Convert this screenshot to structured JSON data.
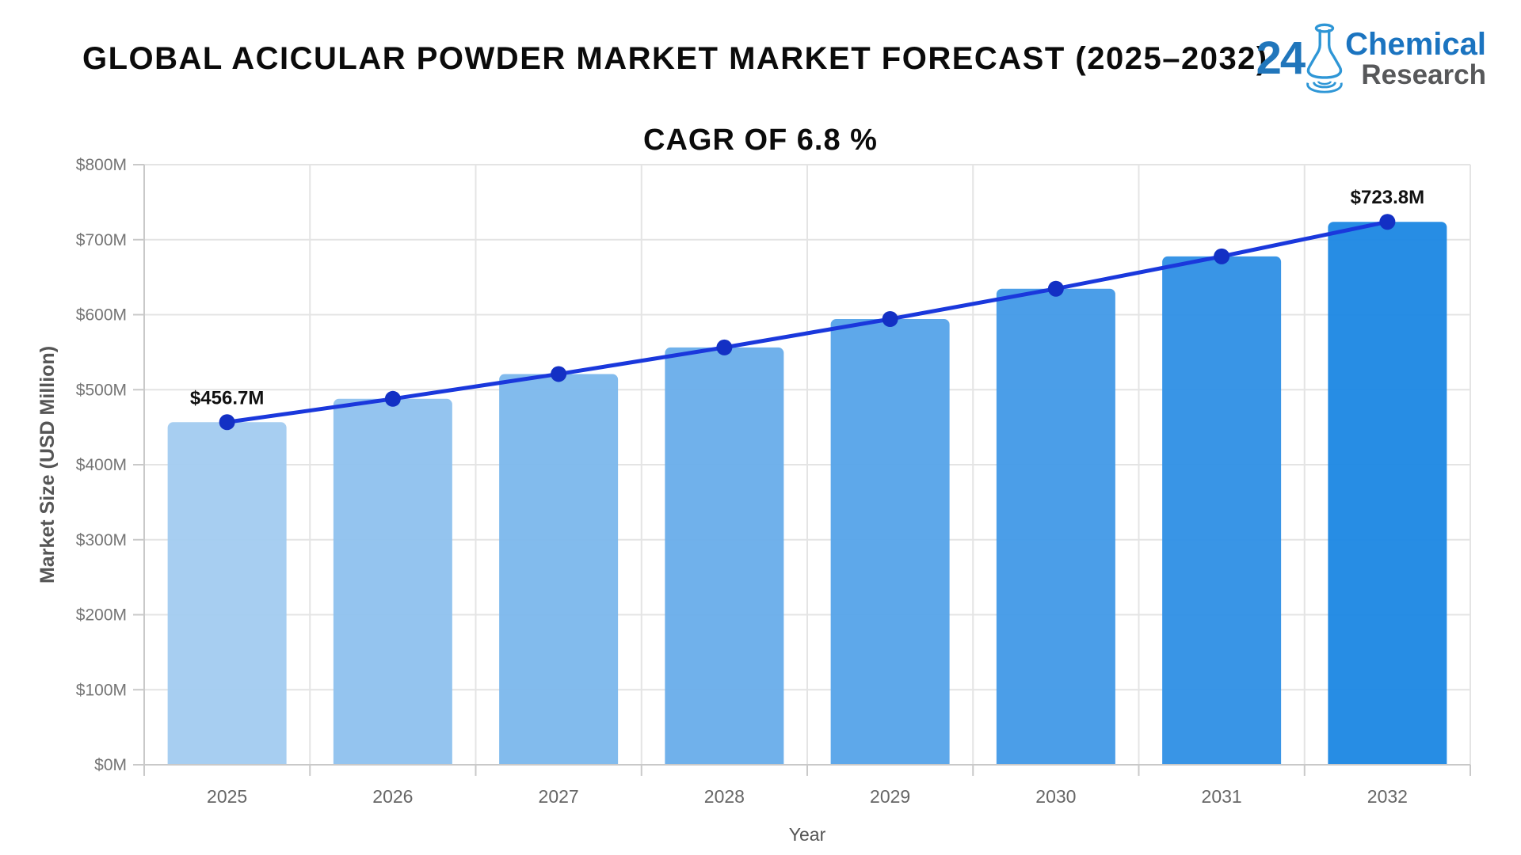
{
  "header": {
    "title": "GLOBAL ACICULAR POWDER MARKET MARKET FORECAST (2025–2032)",
    "subtitle": "CAGR OF 6.8 %"
  },
  "logo": {
    "number": "24",
    "word1": "Chemical",
    "word2": "Research",
    "number_color": "#2176bb",
    "word1_color": "#1b74c0",
    "word2_color": "#57585a",
    "flask_color": "#2e96d6"
  },
  "chart_data": {
    "type": "bar",
    "overlay": "line",
    "title": "",
    "xlabel": "Year",
    "ylabel": "Market Size (USD Million)",
    "categories": [
      "2025",
      "2026",
      "2027",
      "2028",
      "2029",
      "2030",
      "2031",
      "2032"
    ],
    "values": [
      456.7,
      487.8,
      520.9,
      556.3,
      594.2,
      634.6,
      677.7,
      723.8
    ],
    "bar_colors": [
      "#A3CCF0",
      "#90C2EE",
      "#7DB8EC",
      "#6AAEEA",
      "#57A4E9",
      "#449AE7",
      "#3191E5",
      "#1E88E3"
    ],
    "line_color": "#1A38DC",
    "marker_color": "#1330C4",
    "ylim": [
      0,
      800
    ],
    "ytick_step": 100,
    "ytick_prefix": "$",
    "ytick_suffix": "M",
    "grid": true,
    "legend": "none",
    "annotations": [
      {
        "index": 0,
        "label": "$456.7M"
      },
      {
        "index": 7,
        "label": "$723.8M"
      }
    ]
  }
}
